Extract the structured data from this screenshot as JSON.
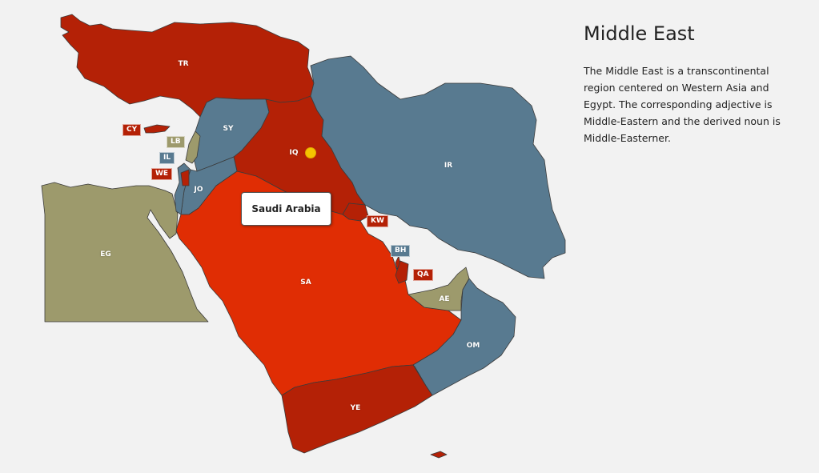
{
  "colors": {
    "red": "#b42106",
    "highlight": "#e02d04",
    "blue": "#587a90",
    "olive": "#9d9a6c",
    "marker": "#f5c400"
  },
  "info": {
    "title": "Middle East",
    "description": "The Middle East is a transcontinental region centered on Western Asia and Egypt. The corresponding adjective is Middle-Eastern and the derived noun is Middle-Easterner."
  },
  "tooltip": {
    "text": "Saudi Arabia"
  },
  "map_labels": {
    "TR": "TR",
    "SY": "SY",
    "IQ": "IQ",
    "IR": "IR",
    "JO": "JO",
    "EG": "EG",
    "SA": "SA",
    "AE": "AE",
    "OM": "OM",
    "YE": "YE"
  },
  "tags": {
    "CY": "CY",
    "LB": "LB",
    "IL": "IL",
    "WE": "WE",
    "KW": "KW",
    "BH": "BH",
    "QA": "QA"
  }
}
